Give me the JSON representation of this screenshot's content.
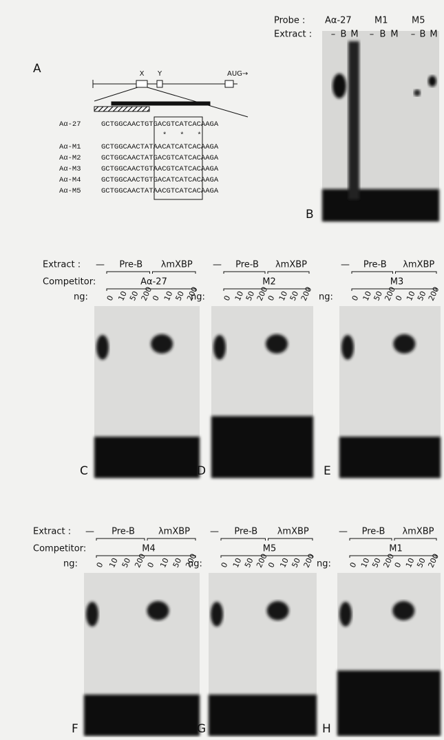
{
  "panel_a": {
    "label": "A",
    "gene_labels": [
      "X",
      "Y",
      "AUG→"
    ],
    "sequences": [
      {
        "name": "Aα-27",
        "seq": "GCTGGCAACTGTGACGTCATCACAAGA"
      },
      {
        "name": "Aα-M1",
        "seq": "GCTGGCAACTATAACATCATCACAAGA"
      },
      {
        "name": "Aα-M2",
        "seq": "GCTGGCAACTATGACGTCATCACAAGA"
      },
      {
        "name": "Aα-M3",
        "seq": "GCTGGCAACTGTAACGTCATCACAAGA"
      },
      {
        "name": "Aα-M4",
        "seq": "GCTGGCAACTGTGACATCATCACAAGA"
      },
      {
        "name": "Aα-M5",
        "seq": "GCTGGCAACTATAACGTCATCACAAGA"
      }
    ],
    "asterisks": "*   *   *"
  },
  "panel_b": {
    "label": "B",
    "probe_label": "Probe  :",
    "probes": [
      "Aα-27",
      "M1",
      "M5"
    ],
    "extract_label": "Extract :",
    "lanes": [
      "–",
      "B",
      "M",
      "–",
      "B",
      "M",
      "–",
      "B",
      "M"
    ]
  },
  "rows": [
    {
      "extract_label": "Extract :",
      "competitor_label": "Competitor:"
    },
    {
      "extract_label": "Extract :",
      "competitor_label": "Competitor:"
    }
  ],
  "panels": [
    {
      "label": "C",
      "minus": "—",
      "groups": [
        "Pre-B",
        "λmXBP"
      ],
      "competitor": "Aα-27",
      "ng_label": "ng:",
      "amounts": [
        "0",
        "10",
        "50",
        "200",
        "0",
        "10",
        "50",
        "200"
      ]
    },
    {
      "label": "D",
      "minus": "—",
      "groups": [
        "Pre-B",
        "λmXBP"
      ],
      "competitor": "M2",
      "ng_label": "ng:",
      "amounts": [
        "0",
        "10",
        "50",
        "200",
        "0",
        "10",
        "50",
        "200"
      ]
    },
    {
      "label": "E",
      "minus": "—",
      "groups": [
        "Pre-B",
        "λmXBP"
      ],
      "competitor": "M3",
      "ng_label": "ng:",
      "amounts": [
        "0",
        "10",
        "50",
        "200",
        "0",
        "10",
        "50",
        "200"
      ]
    },
    {
      "label": "F",
      "minus": "—",
      "groups": [
        "Pre-B",
        "λmXBP"
      ],
      "competitor": "M4",
      "ng_label": "ng:",
      "amounts": [
        "0",
        "10",
        "50",
        "200",
        "0",
        "10",
        "50",
        "200"
      ]
    },
    {
      "label": "G",
      "minus": "—",
      "groups": [
        "Pre-B",
        "λmXBP"
      ],
      "competitor": "M5",
      "ng_label": "ng:",
      "amounts": [
        "0",
        "10",
        "50",
        "200",
        "0",
        "10",
        "50",
        "200"
      ]
    },
    {
      "label": "H",
      "minus": "—",
      "groups": [
        "Pre-B",
        "λmXBP"
      ],
      "competitor": "M1",
      "ng_label": "ng:",
      "amounts": [
        "0",
        "10",
        "50",
        "200",
        "0",
        "10",
        "50",
        "200"
      ]
    }
  ]
}
